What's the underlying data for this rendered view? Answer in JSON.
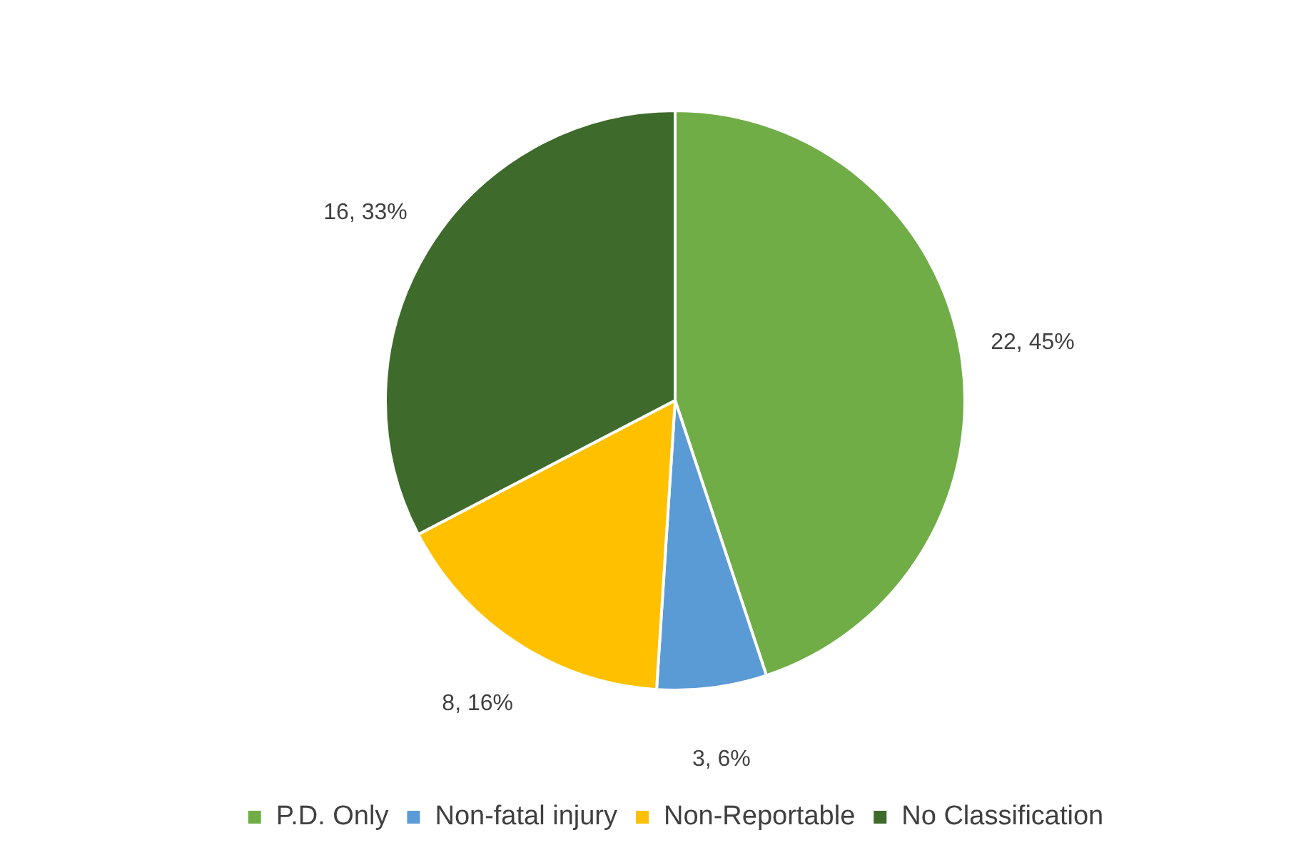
{
  "chart_data": {
    "type": "pie",
    "categories": [
      "P.D. Only",
      "Non-fatal injury",
      "Non-Reportable",
      "No Classification"
    ],
    "values": [
      22,
      3,
      8,
      16
    ],
    "colors": [
      "#70ad47",
      "#5b9bd5",
      "#ffc000",
      "#3e6b2b"
    ],
    "value_labels": [
      "22, 45%",
      "3, 6%",
      "8, 16%",
      "16, 33%"
    ],
    "legend": "bottom"
  }
}
